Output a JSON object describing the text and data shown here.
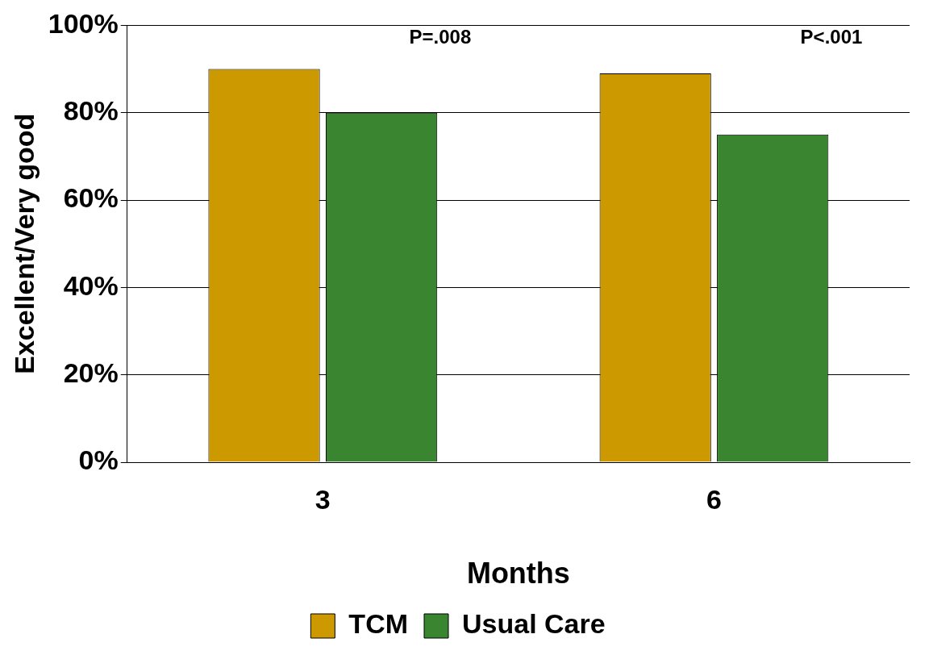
{
  "chart_data": {
    "type": "bar",
    "xlabel": "Months",
    "ylabel": "Excellent/Very good",
    "categories": [
      "3",
      "6"
    ],
    "series": [
      {
        "name": "TCM",
        "color": "#cc9900",
        "values": [
          90,
          89
        ]
      },
      {
        "name": "Usual Care",
        "color": "#3a8530",
        "values": [
          80,
          75
        ]
      }
    ],
    "ylim": [
      0,
      100
    ],
    "yticks": [
      {
        "value": 0,
        "label": "0%"
      },
      {
        "value": 20,
        "label": "20%"
      },
      {
        "value": 40,
        "label": "40%"
      },
      {
        "value": 60,
        "label": "60%"
      },
      {
        "value": 80,
        "label": "80%"
      },
      {
        "value": 100,
        "label": "100%"
      }
    ],
    "grid": "y",
    "legend": "bottom",
    "annotations": [
      "P=.008",
      "P<.001"
    ]
  }
}
